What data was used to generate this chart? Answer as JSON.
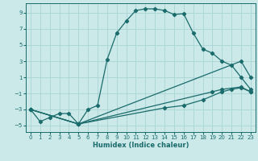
{
  "xlabel": "Humidex (Indice chaleur)",
  "bg_color": "#cce9e9",
  "grid_color": "#aad4d4",
  "line_color": "#1a6b6b",
  "xlim": [
    -0.5,
    23.5
  ],
  "ylim": [
    -5.8,
    10.2
  ],
  "xticks": [
    0,
    1,
    2,
    3,
    4,
    5,
    6,
    7,
    8,
    9,
    10,
    11,
    12,
    13,
    14,
    15,
    16,
    17,
    18,
    19,
    20,
    21,
    22,
    23
  ],
  "yticks": [
    -5,
    -3,
    -1,
    1,
    3,
    5,
    7,
    9
  ],
  "line1_x": [
    0,
    1,
    2,
    3,
    4,
    5,
    6,
    7,
    8,
    9,
    10,
    11,
    12,
    13,
    14,
    15,
    16,
    17,
    18,
    19,
    20,
    21,
    22,
    23
  ],
  "line1_y": [
    -3.0,
    -4.5,
    -4.0,
    -3.5,
    -3.5,
    -4.8,
    -3.0,
    -2.5,
    3.2,
    6.5,
    8.0,
    9.3,
    9.5,
    9.5,
    9.3,
    8.8,
    8.9,
    6.5,
    4.5,
    4.0,
    3.0,
    2.5,
    1.0,
    -0.5
  ],
  "line2_x": [
    0,
    5,
    22,
    23
  ],
  "line2_y": [
    -3.0,
    -4.8,
    3.0,
    1.0
  ],
  "line3_x": [
    0,
    5,
    19,
    20,
    22,
    23
  ],
  "line3_y": [
    -3.0,
    -4.8,
    -0.8,
    -0.5,
    -0.2,
    -0.8
  ],
  "line4_x": [
    0,
    5,
    14,
    16,
    18,
    20,
    21,
    22,
    23
  ],
  "line4_y": [
    -3.0,
    -4.8,
    -2.8,
    -2.5,
    -1.8,
    -0.8,
    -0.5,
    -0.3,
    -0.8
  ]
}
